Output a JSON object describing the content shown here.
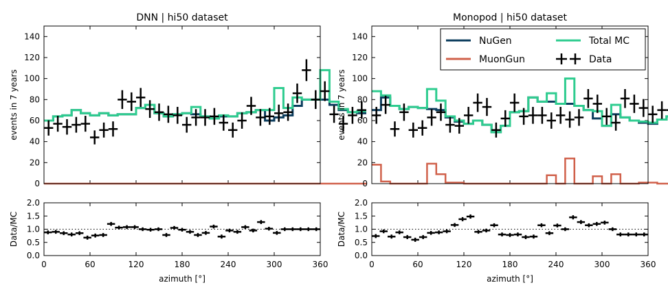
{
  "chart_data": [
    {
      "type": "line",
      "panel": "main",
      "title": "DNN | hi50 dataset",
      "ylabel": "events in 7 years",
      "xlim": [
        0,
        360
      ],
      "ylim": [
        0,
        150
      ],
      "yticks": [
        0,
        20,
        40,
        60,
        80,
        100,
        120,
        140
      ],
      "bin_width": 12,
      "series": [
        {
          "name": "NuGen",
          "color": "#0b3c5d",
          "values": [
            60,
            64,
            65,
            70,
            67,
            65,
            67,
            65,
            66,
            66,
            72,
            75,
            67,
            64,
            66,
            67,
            66,
            64,
            62,
            64,
            64,
            67,
            68,
            70,
            60,
            63,
            65,
            74,
            80,
            80,
            80,
            75,
            70,
            68,
            67
          ]
        },
        {
          "name": "MuonGun",
          "color": "#d0604a",
          "values": [
            0,
            0,
            0,
            0,
            0,
            0,
            0,
            0,
            0,
            0,
            0,
            0,
            0,
            0,
            0,
            0,
            0,
            0,
            0,
            0,
            0,
            0,
            0,
            0,
            0,
            0,
            0,
            0,
            0,
            0,
            0,
            0,
            0,
            0,
            0
          ]
        },
        {
          "name": "Total MC",
          "color": "#2ecc8f",
          "values": [
            60,
            64,
            65,
            70,
            67,
            65,
            67,
            65,
            66,
            66,
            72,
            75,
            67,
            64,
            66,
            67,
            73,
            64,
            62,
            65,
            64,
            67,
            68,
            70,
            70,
            91,
            72,
            82,
            80,
            80,
            108,
            78,
            71,
            68,
            69
          ]
        },
        {
          "name": "Data",
          "color": "#000000",
          "values": [
            53,
            57,
            54,
            56,
            57,
            44,
            51,
            52,
            80,
            78,
            82,
            71,
            68,
            66,
            65,
            56,
            63,
            63,
            64,
            58,
            51,
            60,
            74,
            63,
            64,
            67,
            68,
            86,
            108,
            80,
            88,
            66,
            57,
            65,
            70
          ]
        }
      ]
    },
    {
      "type": "line",
      "panel": "ratio",
      "ylabel": "Data/MC",
      "xlabel": "azimuth [°]",
      "xlim": [
        0,
        360
      ],
      "ylim": [
        0.0,
        2.0
      ],
      "xticks": [
        0,
        60,
        120,
        180,
        240,
        300,
        360
      ],
      "yticks": [
        "0.0",
        "0.5",
        "1.0",
        "1.5",
        "2.0"
      ],
      "reference_line": 1.0,
      "values": [
        0.88,
        0.9,
        0.85,
        0.8,
        0.85,
        0.68,
        0.76,
        0.78,
        1.2,
        1.06,
        1.08,
        1.08,
        1.0,
        0.98,
        1.0,
        0.78,
        1.05,
        0.98,
        0.9,
        0.78,
        0.86,
        1.1,
        0.72,
        0.95,
        0.9,
        1.08,
        0.95,
        1.27,
        1.02,
        0.86,
        1.0,
        1.0,
        1.0,
        1.0,
        1.0
      ]
    },
    {
      "type": "line",
      "panel": "main",
      "title": "Monopod | hi50 dataset",
      "ylabel": "events in 7 years",
      "xlim": [
        0,
        360
      ],
      "ylim": [
        0,
        150
      ],
      "yticks": [
        0,
        20,
        40,
        60,
        80,
        100,
        120,
        140
      ],
      "bin_width": 12,
      "legend_position": "top-right",
      "series": [
        {
          "name": "NuGen",
          "color": "#0b3c5d",
          "values": [
            70,
            82,
            74,
            71,
            73,
            72,
            71,
            70,
            63,
            59,
            57,
            60,
            56,
            49,
            55,
            68,
            69,
            82,
            78,
            78,
            76,
            76,
            74,
            70,
            62,
            55,
            66,
            63,
            60,
            58,
            57,
            61,
            64,
            66,
            69
          ]
        },
        {
          "name": "MuonGun",
          "color": "#d0604a",
          "values": [
            18,
            2,
            0,
            0,
            0,
            0,
            19,
            9,
            1,
            1,
            0,
            0,
            0,
            0,
            0,
            0,
            0,
            0,
            0,
            8,
            0,
            24,
            0,
            0,
            7,
            0,
            9,
            0,
            0,
            1,
            1,
            0,
            0,
            0,
            0
          ]
        },
        {
          "name": "Total MC",
          "color": "#2ecc8f",
          "values": [
            88,
            84,
            74,
            71,
            73,
            72,
            90,
            79,
            64,
            60,
            57,
            60,
            56,
            49,
            55,
            68,
            69,
            82,
            78,
            86,
            76,
            100,
            74,
            70,
            69,
            55,
            75,
            63,
            60,
            59,
            58,
            61,
            64,
            66,
            69
          ]
        },
        {
          "name": "Data",
          "color": "#000000",
          "values": [
            65,
            75,
            52,
            68,
            51,
            53,
            63,
            68,
            56,
            55,
            65,
            77,
            73,
            51,
            62,
            77,
            64,
            65,
            65,
            60,
            65,
            61,
            63,
            81,
            76,
            64,
            58,
            81,
            76,
            72,
            66,
            70,
            70,
            61,
            56
          ]
        }
      ]
    },
    {
      "type": "line",
      "panel": "ratio",
      "ylabel": "Data/MC",
      "xlabel": "azimuth [°]",
      "xlim": [
        0,
        360
      ],
      "ylim": [
        0.0,
        2.0
      ],
      "xticks": [
        0,
        60,
        120,
        180,
        240,
        300,
        360
      ],
      "yticks": [
        "0.0",
        "0.5",
        "1.0",
        "1.5",
        "2.0"
      ],
      "reference_line": 1.0,
      "values": [
        0.74,
        0.92,
        0.72,
        0.88,
        0.7,
        0.6,
        0.7,
        0.86,
        0.88,
        0.92,
        1.16,
        1.38,
        1.48,
        0.9,
        0.95,
        1.15,
        0.8,
        0.78,
        0.8,
        0.7,
        0.72,
        1.15,
        0.85,
        1.14,
        1.0,
        1.45,
        1.27,
        1.15,
        1.2,
        1.25,
        1.0,
        0.8,
        0.8,
        0.8,
        0.8
      ]
    }
  ]
}
